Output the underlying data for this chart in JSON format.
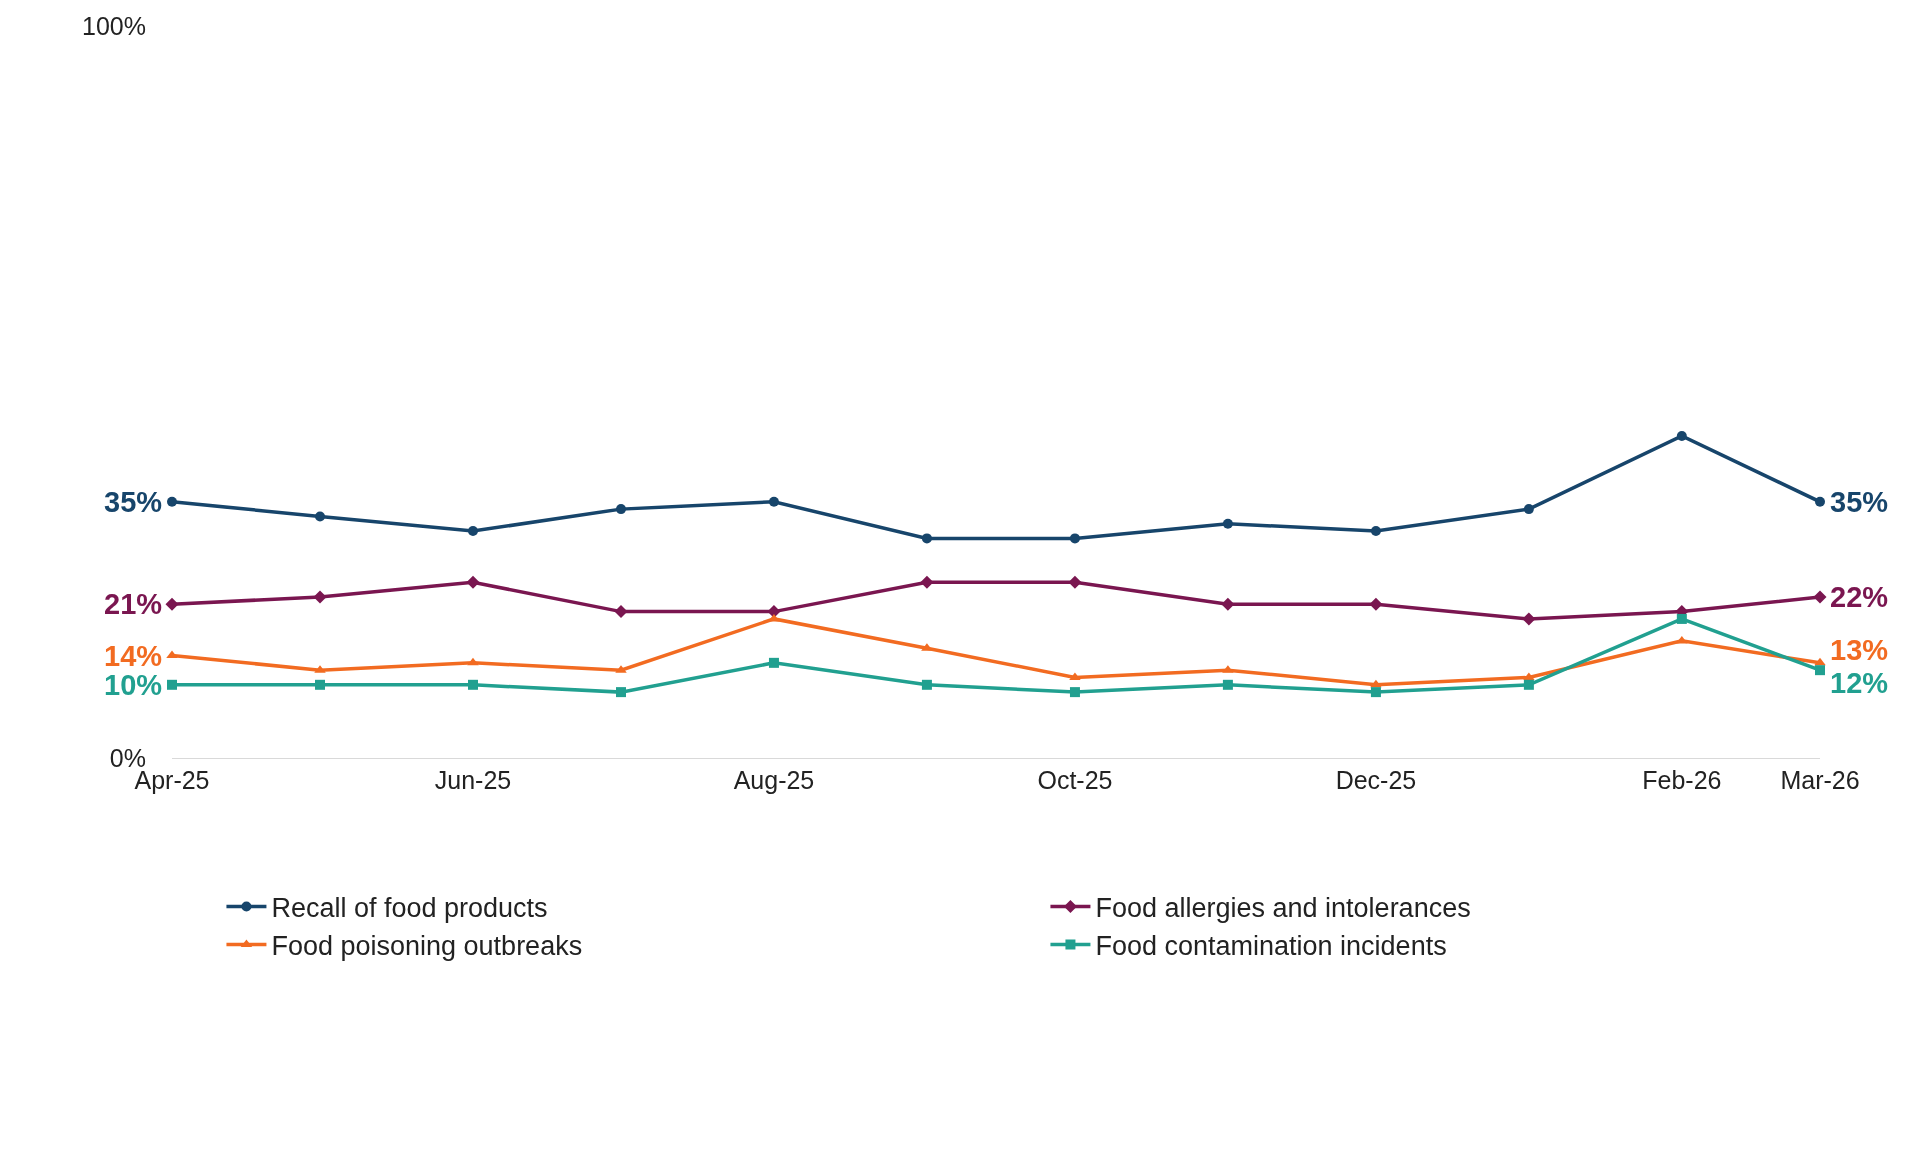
{
  "chart_data": {
    "type": "line",
    "x": [
      "2025-04",
      "2025-05",
      "2025-06",
      "2025-07",
      "2025-08",
      "2025-09",
      "2025-10",
      "2025-11",
      "2025-12",
      "2026-01",
      "2026-02",
      "2026-03"
    ],
    "xlim": [
      "2025-04",
      "2026-03"
    ],
    "xticks": [
      {
        "value": "2025-04",
        "label": "Apr-25"
      },
      {
        "value": "2025-06",
        "label": "Jun-25"
      },
      {
        "value": "2025-08",
        "label": "Aug-25"
      },
      {
        "value": "2025-10",
        "label": "Oct-25"
      },
      {
        "value": "2025-12",
        "label": "Dec-25"
      },
      {
        "value": "2026-02",
        "label": "Feb-26"
      },
      {
        "value": "2026-03",
        "label": "Mar-26"
      }
    ],
    "ylim": [
      0,
      100
    ],
    "yticks": [
      {
        "value": 0,
        "label": "0%"
      },
      {
        "value": 100,
        "label": "100%"
      }
    ],
    "legend": "bottom",
    "line_style": "solid",
    "series": [
      {
        "name": "Recall of food products",
        "color": "#17456b",
        "marker": "circle",
        "values": [
          35,
          33,
          31,
          34,
          35,
          30,
          30,
          32,
          31,
          34,
          44,
          35
        ],
        "value_labels": [
          "35%",
          null,
          null,
          null,
          null,
          null,
          null,
          null,
          null,
          null,
          null,
          "35%"
        ]
      },
      {
        "name": "Food allergies and intolerances",
        "color": "#7a1650",
        "marker": "diamond",
        "values": [
          21,
          22,
          24,
          20,
          20,
          24,
          24,
          21,
          21,
          19,
          20,
          22
        ],
        "value_labels": [
          "21%",
          null,
          null,
          null,
          null,
          null,
          null,
          null,
          null,
          null,
          null,
          "22%"
        ]
      },
      {
        "name": "Food poisoning outbreaks",
        "color": "#f26b21",
        "marker": "triangle",
        "values": [
          14,
          12,
          13,
          12,
          19,
          15,
          11,
          12,
          10,
          11,
          16,
          13
        ],
        "value_labels": [
          "14%",
          null,
          null,
          null,
          null,
          null,
          null,
          null,
          null,
          null,
          null,
          "13%"
        ]
      },
      {
        "name": "Food contamination incidents",
        "color": "#21a090",
        "marker": "square",
        "values": [
          10,
          10,
          10,
          9,
          13,
          10,
          9,
          10,
          9,
          10,
          19,
          12
        ],
        "value_labels": [
          "10%",
          null,
          null,
          null,
          null,
          null,
          null,
          null,
          null,
          null,
          null,
          "12%"
        ]
      }
    ]
  }
}
